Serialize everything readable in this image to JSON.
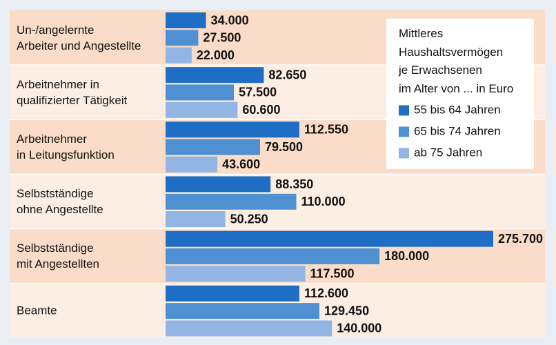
{
  "chart_data": {
    "type": "bar",
    "orientation": "horizontal",
    "legend_title": "Mittleres\nHaushaltsvermögen\nje Erwachsenen\nim Alter von ... in Euro",
    "legend_position": "upper right",
    "categories": [
      "Un-/angelernte\nArbeiter und Angestellte",
      "Arbeitnehmer in\nqualifizierter Tätigkeit",
      "Arbeitnehmer\nin Leitungsfunktion",
      "Selbstständige\nohne Angestellte",
      "Selbstständige\nmit Angestellten",
      "Beamte"
    ],
    "series": [
      {
        "name": "55 bis 64 Jahren",
        "color": "#1f6ec6",
        "values": [
          34000,
          82650,
          112550,
          88350,
          275700,
          112600
        ],
        "value_labels": [
          "34.000",
          "82.650",
          "112.550",
          "88.350",
          "275.700",
          "112.600"
        ]
      },
      {
        "name": "65 bis 74 Jahren",
        "color": "#4f90d3",
        "values": [
          27500,
          57500,
          79500,
          110000,
          180000,
          129450
        ],
        "value_labels": [
          "27.500",
          "57.500",
          "79.500",
          "110.000",
          "180.000",
          "129.450"
        ]
      },
      {
        "name": "ab 75 Jahren",
        "color": "#92b5e3",
        "values": [
          22000,
          60600,
          43600,
          50250,
          117500,
          140000
        ],
        "value_labels": [
          "22.000",
          "60.600",
          "43.600",
          "50.250",
          "117.500",
          "140.000"
        ]
      }
    ]
  }
}
